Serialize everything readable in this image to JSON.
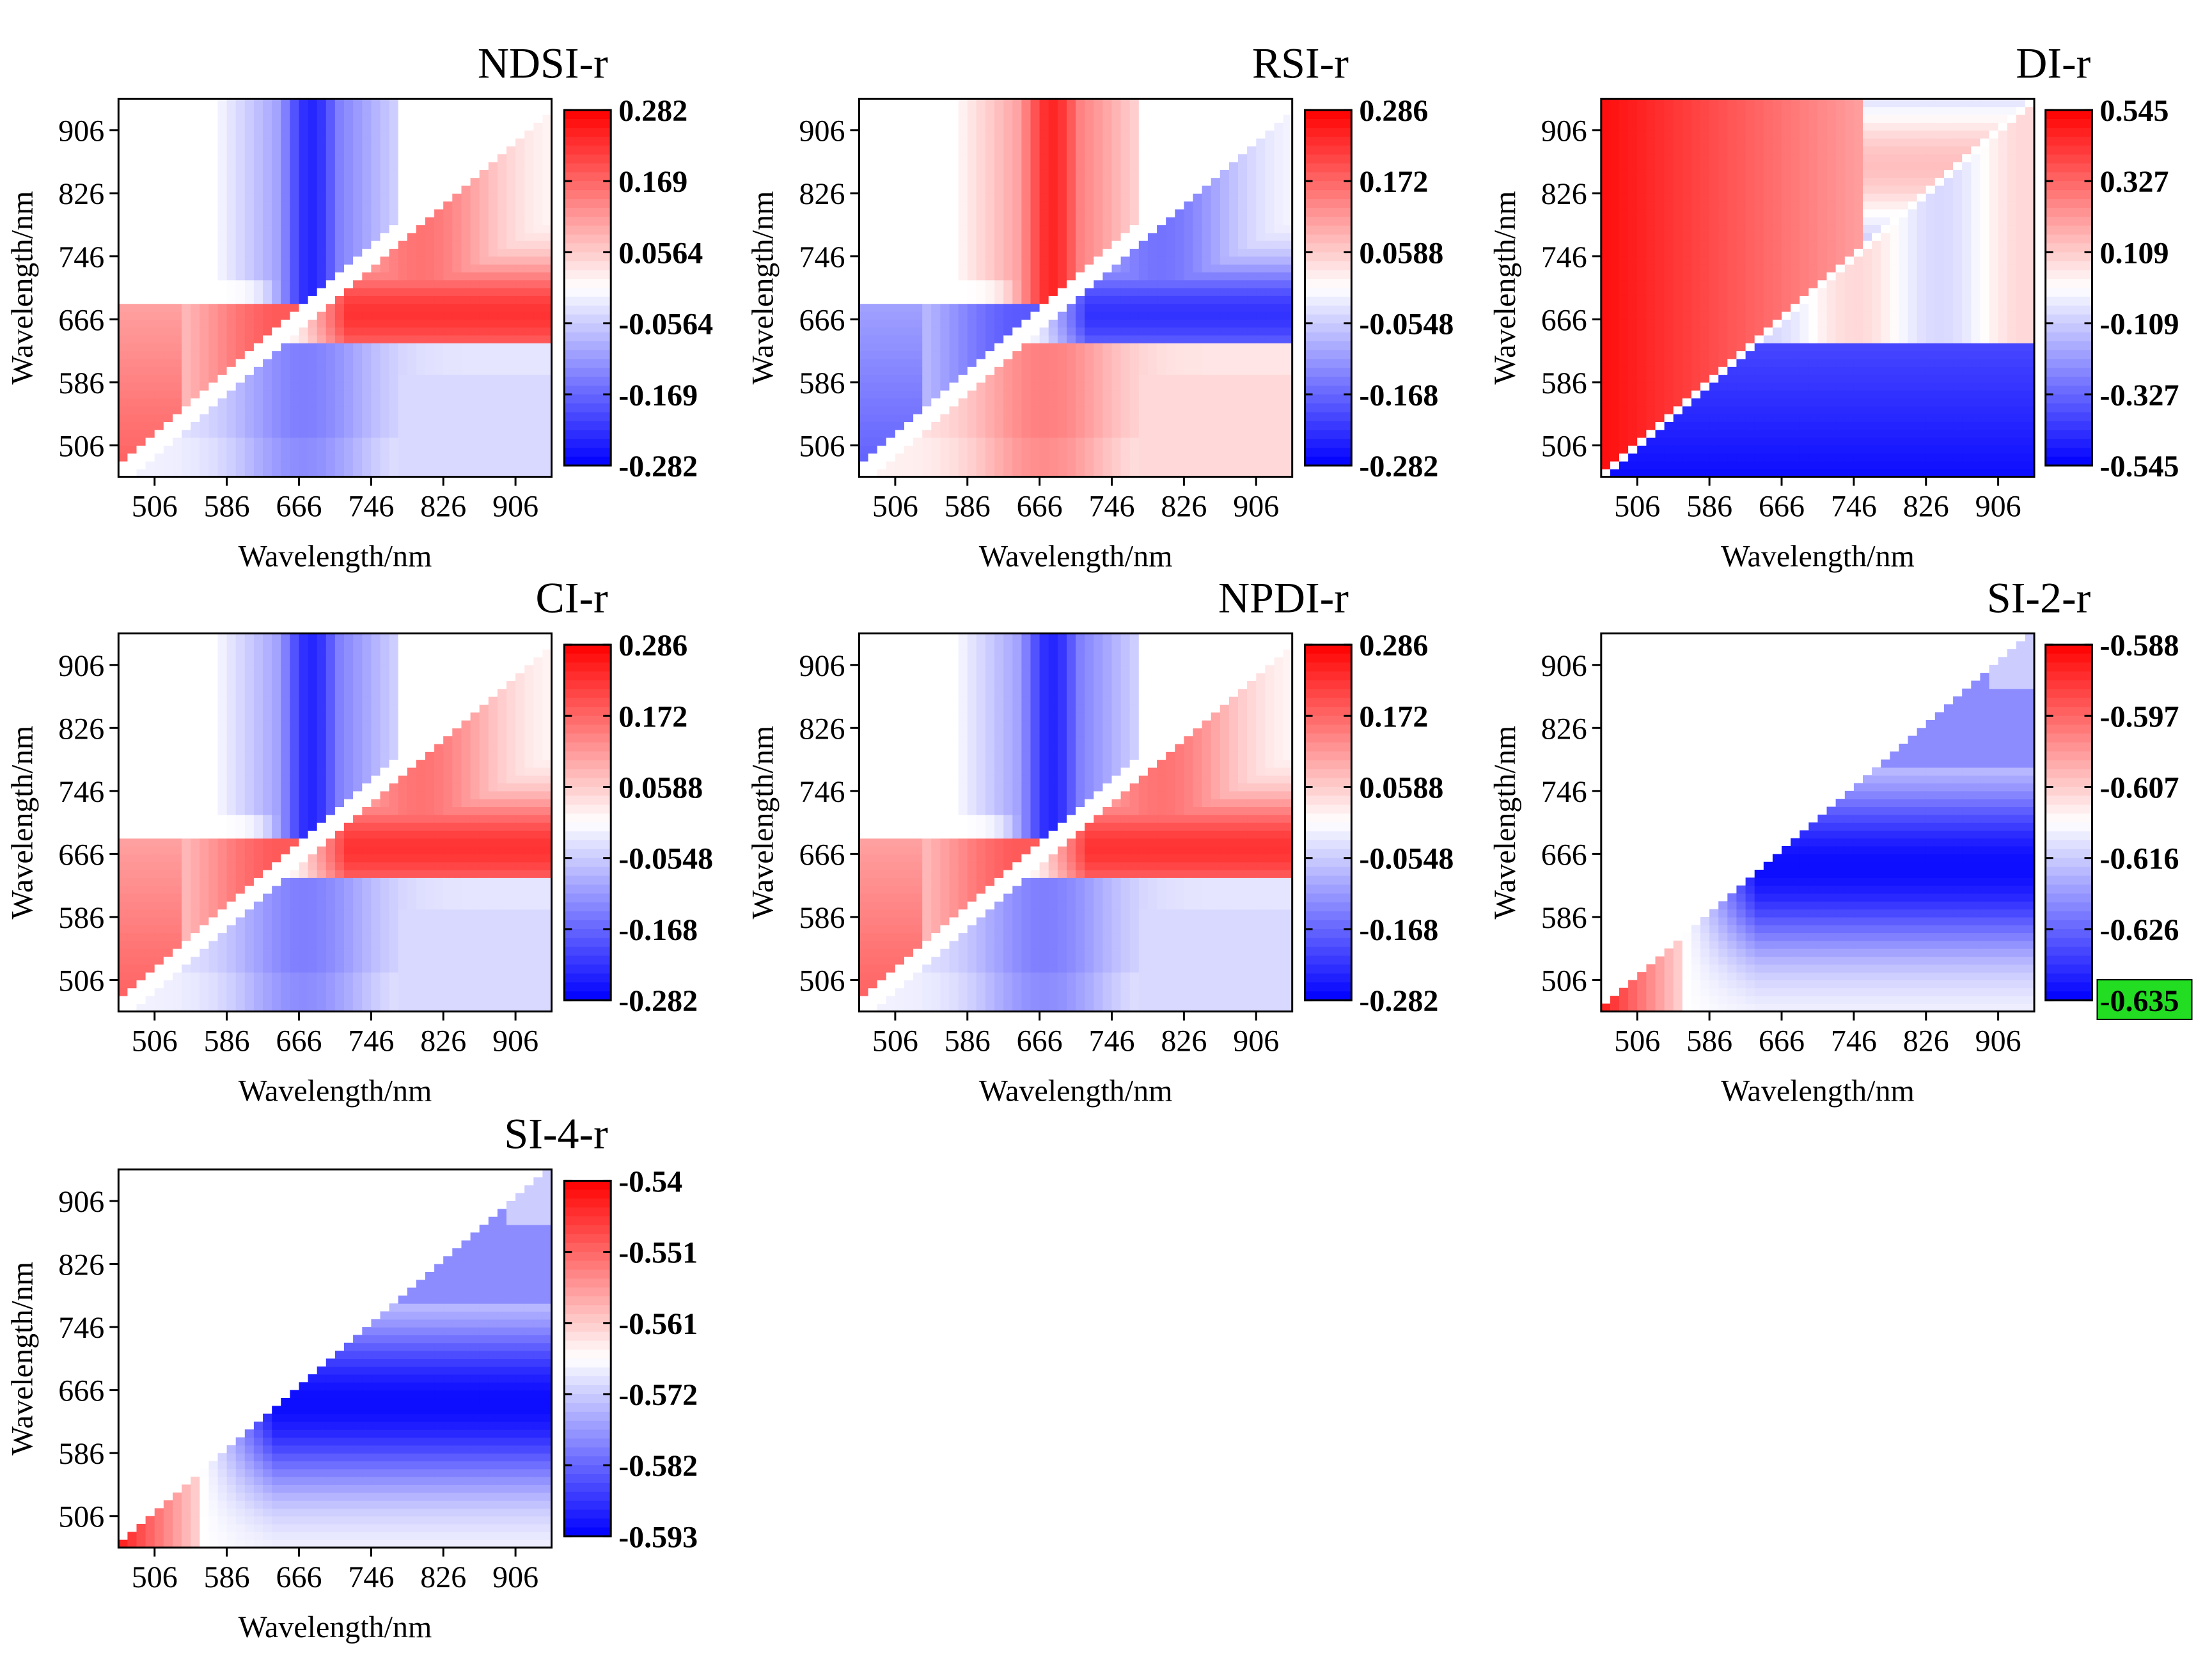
{
  "figure": {
    "type": "heatmap-grid",
    "panel_count": 7
  },
  "colors": {
    "positive": "#ff0000",
    "neutral": "#ffffff",
    "negative": "#0000ff",
    "highlight": "#22dd22"
  },
  "chart_data": [
    {
      "type": "heatmap",
      "title": "NDSI-r",
      "xlabel": "Wavelength/nm",
      "ylabel": "Wavelength/nm",
      "xticks": [
        "506",
        "586",
        "666",
        "746",
        "826",
        "906"
      ],
      "yticks": [
        "906",
        "826",
        "746",
        "666",
        "586",
        "506"
      ],
      "x_range": [
        466,
        946
      ],
      "y_range": [
        466,
        946
      ],
      "colorbar": {
        "ticks": [
          "0.282",
          "0.169",
          "0.0564",
          "-0.0564",
          "-0.169",
          "-0.282"
        ],
        "min": -0.282,
        "max": 0.282
      },
      "pattern": "ndsi"
    },
    {
      "type": "heatmap",
      "title": "RSI-r",
      "xlabel": "Wavelength/nm",
      "ylabel": "Wavelength/nm",
      "xticks": [
        "506",
        "586",
        "666",
        "746",
        "826",
        "906"
      ],
      "yticks": [
        "906",
        "826",
        "746",
        "666",
        "586",
        "506"
      ],
      "x_range": [
        466,
        946
      ],
      "y_range": [
        466,
        946
      ],
      "colorbar": {
        "ticks": [
          "0.286",
          "0.172",
          "0.0588",
          "-0.0548",
          "-0.168",
          "-0.282"
        ],
        "min": -0.282,
        "max": 0.286
      },
      "pattern": "rsi"
    },
    {
      "type": "heatmap",
      "title": "DI-r",
      "xlabel": "Wavelength/nm",
      "ylabel": "Wavelength/nm",
      "xticks": [
        "506",
        "586",
        "666",
        "746",
        "826",
        "906"
      ],
      "yticks": [
        "906",
        "826",
        "746",
        "666",
        "586",
        "506"
      ],
      "x_range": [
        466,
        946
      ],
      "y_range": [
        466,
        946
      ],
      "colorbar": {
        "ticks": [
          "0.545",
          "0.327",
          "0.109",
          "-0.109",
          "-0.327",
          "-0.545"
        ],
        "min": -0.545,
        "max": 0.545
      },
      "pattern": "di"
    },
    {
      "type": "heatmap",
      "title": "CI-r",
      "xlabel": "Wavelength/nm",
      "ylabel": "Wavelength/nm",
      "xticks": [
        "506",
        "586",
        "666",
        "746",
        "826",
        "906"
      ],
      "yticks": [
        "906",
        "826",
        "746",
        "666",
        "586",
        "506"
      ],
      "x_range": [
        466,
        946
      ],
      "y_range": [
        466,
        946
      ],
      "colorbar": {
        "ticks": [
          "0.286",
          "0.172",
          "0.0588",
          "-0.0548",
          "-0.168",
          "-0.282"
        ],
        "min": -0.282,
        "max": 0.286
      },
      "pattern": "ndsi"
    },
    {
      "type": "heatmap",
      "title": "NPDI-r",
      "xlabel": "Wavelength/nm",
      "ylabel": "Wavelength/nm",
      "xticks": [
        "506",
        "586",
        "666",
        "746",
        "826",
        "906"
      ],
      "yticks": [
        "906",
        "826",
        "746",
        "666",
        "586",
        "506"
      ],
      "x_range": [
        466,
        946
      ],
      "y_range": [
        466,
        946
      ],
      "colorbar": {
        "ticks": [
          "0.286",
          "0.172",
          "0.0588",
          "-0.0548",
          "-0.168",
          "-0.282"
        ],
        "min": -0.282,
        "max": 0.286
      },
      "pattern": "ndsi"
    },
    {
      "type": "heatmap",
      "title": "SI-2-r",
      "xlabel": "Wavelength/nm",
      "ylabel": "Wavelength/nm",
      "xticks": [
        "506",
        "586",
        "666",
        "746",
        "826",
        "906"
      ],
      "yticks": [
        "906",
        "826",
        "746",
        "666",
        "586",
        "506"
      ],
      "x_range": [
        466,
        946
      ],
      "y_range": [
        466,
        946
      ],
      "colorbar": {
        "ticks": [
          "-0.588",
          "-0.597",
          "-0.607",
          "-0.616",
          "-0.626",
          "-0.635"
        ],
        "min": -0.635,
        "max": -0.588,
        "highlight_tick": 5
      },
      "pattern": "si"
    },
    {
      "type": "heatmap",
      "title": "SI-4-r",
      "xlabel": "Wavelength/nm",
      "ylabel": "Wavelength/nm",
      "xticks": [
        "506",
        "586",
        "666",
        "746",
        "826",
        "906"
      ],
      "yticks": [
        "906",
        "826",
        "746",
        "666",
        "586",
        "506"
      ],
      "x_range": [
        466,
        946
      ],
      "y_range": [
        466,
        946
      ],
      "colorbar": {
        "ticks": [
          "-0.54",
          "-0.551",
          "-0.561",
          "-0.572",
          "-0.582",
          "-0.593"
        ],
        "min": -0.593,
        "max": -0.54
      },
      "pattern": "si"
    }
  ]
}
